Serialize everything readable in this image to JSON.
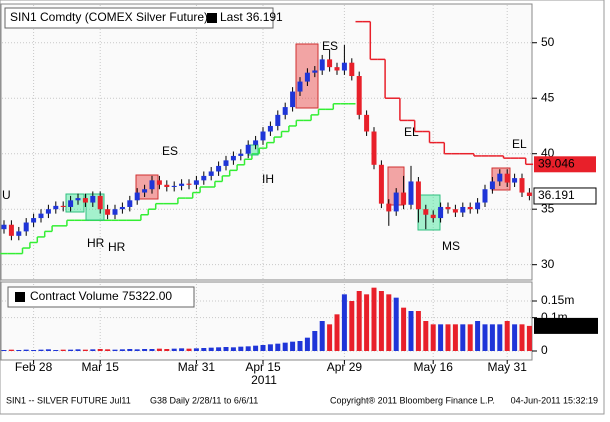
{
  "chart_data": {
    "type": "candlestick",
    "title": "SIN1 Comdty (COMEX Silver Future)",
    "legend_last": "Last 36.191",
    "up_color": "#1f35d8",
    "down_color": "#e8202a",
    "categories": [
      null,
      null,
      null,
      null,
      "Feb 28",
      null,
      null,
      null,
      null,
      null,
      null,
      null,
      null,
      "Mar 15",
      null,
      null,
      null,
      null,
      null,
      null,
      null,
      null,
      null,
      null,
      null,
      null,
      "Mar 31",
      null,
      null,
      null,
      null,
      null,
      null,
      null,
      null,
      "Apr 15",
      null,
      null,
      null,
      null,
      null,
      null,
      null,
      null,
      null,
      null,
      "Apr 29",
      null,
      null,
      null,
      null,
      null,
      null,
      null,
      null,
      null,
      null,
      null,
      "May 16",
      null,
      null,
      null,
      null,
      null,
      null,
      null,
      null,
      null,
      "May 31",
      null,
      null,
      null
    ],
    "year_label": "2011",
    "open": [
      33.2,
      33.6,
      32.6,
      33.0,
      33.8,
      34.2,
      34.6,
      35.0,
      35.3,
      35.2,
      35.8,
      36.0,
      35.6,
      36.2,
      35.0,
      34.5,
      35.0,
      35.2,
      35.8,
      36.5,
      36.8,
      37.6,
      37.2,
      37.0,
      37.1,
      37.3,
      37.2,
      37.6,
      38.0,
      38.4,
      38.9,
      39.4,
      39.8,
      40.0,
      40.8,
      41.2,
      42.0,
      42.5,
      43.5,
      44.2,
      45.6,
      46.5,
      47.3,
      47.5,
      48.5,
      47.8,
      47.5,
      48.2,
      47.0,
      43.5,
      42.0,
      39.0,
      35.5,
      34.8,
      36.5,
      35.4,
      37.5,
      35.0,
      34.5,
      34.2,
      35.2,
      35.0,
      34.7,
      35.2,
      35.0,
      35.6,
      36.8,
      37.5,
      38.2,
      37.4,
      37.8,
      36.5
    ],
    "high": [
      34.0,
      34.0,
      33.4,
      34.2,
      34.6,
      35.0,
      35.4,
      35.7,
      35.7,
      36.2,
      36.4,
      36.4,
      36.6,
      36.6,
      35.4,
      35.4,
      35.6,
      36.2,
      36.9,
      37.2,
      38.0,
      38.0,
      37.6,
      37.5,
      37.7,
      37.7,
      38.0,
      38.4,
      38.8,
      39.3,
      39.8,
      40.2,
      40.4,
      41.2,
      41.6,
      42.4,
      42.9,
      43.9,
      44.6,
      46.0,
      46.9,
      47.7,
      47.9,
      48.9,
      49.4,
      48.2,
      49.8,
      48.6,
      47.4,
      43.9,
      42.4,
      39.4,
      35.9,
      36.9,
      38.0,
      38.9,
      37.9,
      35.4,
      34.9,
      35.6,
      35.6,
      35.4,
      35.6,
      35.6,
      36.0,
      37.2,
      37.9,
      38.6,
      38.6,
      38.2,
      38.2,
      36.9
    ],
    "low": [
      32.8,
      32.2,
      32.2,
      32.6,
      33.4,
      33.8,
      34.2,
      34.6,
      34.8,
      34.8,
      35.4,
      35.2,
      35.2,
      34.6,
      34.1,
      34.1,
      34.6,
      34.8,
      35.4,
      36.1,
      36.4,
      36.8,
      36.6,
      36.6,
      36.7,
      36.8,
      36.8,
      37.2,
      37.6,
      38.0,
      38.5,
      39.0,
      39.4,
      39.6,
      40.4,
      40.8,
      41.6,
      42.1,
      43.1,
      43.8,
      45.2,
      46.1,
      46.9,
      47.1,
      47.4,
      47.1,
      47.1,
      46.6,
      43.1,
      41.6,
      38.6,
      35.1,
      33.5,
      34.4,
      35.0,
      35.0,
      33.8,
      33.2,
      33.8,
      33.8,
      34.6,
      34.3,
      34.3,
      34.6,
      34.6,
      35.2,
      36.4,
      37.1,
      37.0,
      37.0,
      36.1,
      35.8
    ],
    "close": [
      33.6,
      32.6,
      33.0,
      33.8,
      34.2,
      34.6,
      35.0,
      35.3,
      35.2,
      35.8,
      36.0,
      35.6,
      36.2,
      35.0,
      34.5,
      35.0,
      35.2,
      35.8,
      36.5,
      36.8,
      37.6,
      37.2,
      37.0,
      37.1,
      37.3,
      37.2,
      37.6,
      38.0,
      38.4,
      38.9,
      39.4,
      39.8,
      40.0,
      40.8,
      41.2,
      42.0,
      42.5,
      43.5,
      44.2,
      45.6,
      46.5,
      47.3,
      47.5,
      48.5,
      47.8,
      47.5,
      48.2,
      47.0,
      43.5,
      42.0,
      39.0,
      35.5,
      34.8,
      36.5,
      35.4,
      37.5,
      35.0,
      34.5,
      34.2,
      35.2,
      35.0,
      34.7,
      35.2,
      35.0,
      35.6,
      36.8,
      37.5,
      38.2,
      37.4,
      37.8,
      36.5,
      36.191
    ],
    "last_price_label": "36.191",
    "support": {
      "color": "#33ee33",
      "values": [
        31,
        31,
        31,
        31.5,
        32,
        32.5,
        33,
        33.5,
        33.5,
        34,
        34,
        34,
        34,
        34,
        34,
        34,
        34,
        34,
        34,
        34.5,
        35,
        35.5,
        35.5,
        35.5,
        36,
        36,
        36.5,
        37,
        37,
        37.5,
        38,
        38.5,
        39,
        39.5,
        40,
        40.5,
        41,
        41.5,
        42,
        42.5,
        43,
        43,
        43.5,
        44,
        44,
        44.5,
        44.5,
        44.5,
        null,
        null,
        null,
        null,
        null,
        null,
        null,
        null,
        null,
        null,
        null,
        null,
        null,
        null,
        null,
        null,
        null,
        null,
        null,
        null,
        null,
        null,
        null,
        null
      ]
    },
    "resistance": {
      "color": "#e8202a",
      "label": "39.046",
      "values": [
        null,
        null,
        null,
        null,
        null,
        null,
        null,
        null,
        null,
        null,
        null,
        null,
        null,
        null,
        null,
        null,
        null,
        null,
        null,
        null,
        null,
        null,
        null,
        null,
        null,
        null,
        null,
        null,
        null,
        null,
        null,
        null,
        null,
        null,
        null,
        null,
        null,
        null,
        null,
        null,
        null,
        null,
        null,
        null,
        null,
        null,
        null,
        null,
        51.9,
        51.9,
        48.5,
        48.5,
        45,
        45,
        43,
        43,
        42,
        42,
        41,
        41,
        40,
        40,
        40,
        40,
        39.8,
        39.8,
        39.8,
        39.8,
        39.6,
        39.6,
        39.6,
        39.046
      ]
    },
    "ylim": [
      28.8,
      53.4
    ],
    "yticks": [
      30,
      35,
      40,
      45,
      50
    ],
    "grid": true,
    "annotations": [
      {
        "text": "U",
        "color": "#e8202a"
      },
      {
        "text": "HR",
        "color": "#22cc66"
      },
      {
        "text": "HR",
        "color": "#22cc66"
      },
      {
        "text": "ES",
        "color": "#e8202a"
      },
      {
        "text": "IH",
        "color": "#22cc66"
      },
      {
        "text": "ES",
        "color": "#e8202a"
      },
      {
        "text": "EL",
        "color": "#e8202a"
      },
      {
        "text": "MS",
        "color": "#22cc66"
      },
      {
        "text": "EL",
        "color": "#e8202a"
      }
    ],
    "volume": {
      "legend": "Contract Volume 75322.00",
      "label": "75322.00",
      "values": [
        0.003,
        0.004,
        0.003,
        0.004,
        0.003,
        0.004,
        0.005,
        0.003,
        0.004,
        0.004,
        0.005,
        0.004,
        0.005,
        0.006,
        0.005,
        0.004,
        0.005,
        0.006,
        0.005,
        0.006,
        0.006,
        0.007,
        0.006,
        0.007,
        0.008,
        0.007,
        0.008,
        0.009,
        0.01,
        0.011,
        0.012,
        0.011,
        0.013,
        0.014,
        0.016,
        0.018,
        0.02,
        0.022,
        0.025,
        0.028,
        0.03,
        0.04,
        0.06,
        0.09,
        0.08,
        0.11,
        0.17,
        0.15,
        0.18,
        0.17,
        0.19,
        0.18,
        0.17,
        0.16,
        0.13,
        0.12,
        0.12,
        0.09,
        0.08,
        0.08,
        0.08,
        0.08,
        0.08,
        0.08,
        0.09,
        0.08,
        0.08,
        0.08,
        0.09,
        0.08,
        0.08,
        0.075322
      ],
      "ylim": [
        -0.027,
        0.207
      ],
      "yticks": [
        0,
        {
          "value": 0.1,
          "label": "0.1m"
        },
        {
          "value": 0.15,
          "label": "0.15m"
        }
      ]
    },
    "footer": [
      "SIN1 -- SILVER FUTURE  Jul11",
      "G38  Daily  2/28/11 to 6/6/11",
      "Copyright® 2011 Bloomberg Finance L.P.",
      "04-Jun-2011 15:32:19"
    ]
  }
}
